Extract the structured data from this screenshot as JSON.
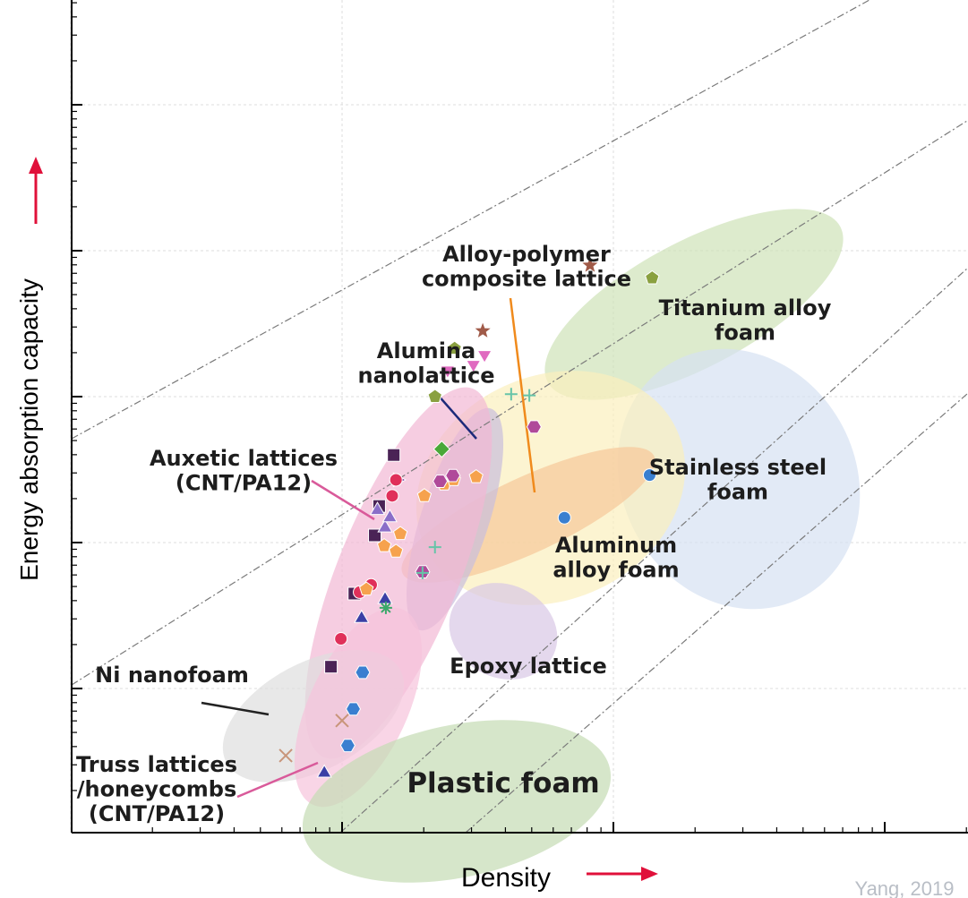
{
  "chart_data": {
    "type": "scatter",
    "title": "",
    "xlabel": "Density",
    "ylabel": "Energy absorption capacity",
    "axis_arrow_color": "#e0103a",
    "scale": "log-log",
    "grid": true,
    "tick_labels": "none",
    "regions": [
      {
        "name": "Titanium alloy foam",
        "label": "Titanium alloy\nfoam",
        "color": "#cfe3b8"
      },
      {
        "name": "Stainless steel foam",
        "label": "Stainless steel\nfoam",
        "color": "#d5e1f2"
      },
      {
        "name": "Aluminum alloy foam",
        "label": "Aluminum\nalloy foam",
        "color": "#fbf0bd"
      },
      {
        "name": "Alloy-polymer composite lattice",
        "label": "Alloy-polymer\ncomposite lattice",
        "color": "#f6c89a"
      },
      {
        "name": "Alumina nanolattice",
        "label": "Alumina\nnanolattice",
        "color": "#c9bedd"
      },
      {
        "name": "Auxetic lattices (CNT/PA12)",
        "label": "Auxetic lattices\n(CNT/PA12)",
        "color": "#f2b8d4"
      },
      {
        "name": "Epoxy lattice",
        "label": "Epoxy lattice",
        "color": "#d8c8e6"
      },
      {
        "name": "Ni nanofoam",
        "label": "Ni nanofoam",
        "color": "#dedede"
      },
      {
        "name": "Truss lattices /honeycombs (CNT/PA12)",
        "label": "Truss lattices\n/honeycombs\n(CNT/PA12)",
        "color": "#f6c3dc"
      },
      {
        "name": "Plastic foam",
        "label": "Plastic foam",
        "color": "#c5dbb3"
      }
    ],
    "points": [
      {
        "group": "Auxetic lattices",
        "marker": "square",
        "color": "#4a2356",
        "points": [
          [
            0.91,
            0.141
          ],
          [
            1.11,
            0.447
          ],
          [
            1.32,
            1.12
          ],
          [
            1.37,
            1.78
          ],
          [
            1.55,
            3.98
          ]
        ]
      },
      {
        "group": "Auxetic lattices",
        "marker": "triangle-right",
        "color": "#7a3fa0",
        "points": [
          [
            1.6,
            2.69
          ]
        ]
      },
      {
        "group": "Auxetic lattices",
        "marker": "circle",
        "color": "#e0305a",
        "points": [
          [
            0.99,
            0.219
          ],
          [
            1.16,
            0.457
          ],
          [
            1.28,
            0.513
          ],
          [
            1.53,
            2.09
          ],
          [
            1.58,
            2.69
          ]
        ]
      },
      {
        "group": "Truss lattices /honeycombs",
        "marker": "triangle",
        "color": "#3a3fa5",
        "points": [
          [
            0.86,
            0.0263
          ],
          [
            1.18,
            0.302
          ],
          [
            1.44,
            0.407
          ]
        ]
      },
      {
        "group": "Truss lattices /honeycombs",
        "marker": "hexagon",
        "color": "#3a7fd0",
        "points": [
          [
            1.05,
            0.0407
          ],
          [
            1.1,
            0.0724
          ],
          [
            1.19,
            0.129
          ]
        ]
      },
      {
        "group": "Ni nanofoam",
        "marker": "x",
        "color": "#c8957a",
        "points": [
          [
            0.62,
            0.0347
          ],
          [
            1.0,
            0.0603
          ]
        ]
      },
      {
        "group": "Alumina nanolattice",
        "marker": "triangle",
        "color": "#8a6ec8",
        "points": [
          [
            1.35,
            1.66
          ],
          [
            1.44,
            1.26
          ],
          [
            1.5,
            1.48
          ]
        ]
      },
      {
        "group": "Alumina nanolattice",
        "marker": "asterisk",
        "color": "#3aa86a",
        "points": [
          [
            1.45,
            0.357
          ]
        ]
      },
      {
        "group": "Alloy-polymer composite lattice",
        "marker": "pentagon",
        "color": "#f6a24e",
        "points": [
          [
            1.23,
            0.479
          ],
          [
            1.43,
            0.95
          ],
          [
            1.58,
            0.87
          ],
          [
            1.64,
            1.15
          ],
          [
            2.01,
            2.09
          ],
          [
            2.38,
            2.51
          ],
          [
            2.58,
            2.69
          ],
          [
            3.12,
            2.82
          ]
        ]
      },
      {
        "group": "Aluminum alloy foam",
        "marker": "hexagon",
        "color": "#b04a9a",
        "points": [
          [
            1.98,
            0.631
          ],
          [
            2.3,
            2.63
          ],
          [
            2.56,
            2.88
          ],
          [
            5.1,
            6.2
          ]
        ]
      },
      {
        "group": "Aluminum alloy foam",
        "marker": "diamond",
        "color": "#4aa838",
        "points": [
          [
            2.33,
            4.37
          ]
        ]
      },
      {
        "group": "Titanium alloy foam",
        "marker": "pentagon",
        "color": "#8aa040",
        "points": [
          [
            2.2,
            10.0
          ],
          [
            2.6,
            21.4
          ],
          [
            13.9,
            65.0
          ]
        ]
      },
      {
        "group": "Titanium alloy foam",
        "marker": "star",
        "color": "#a05a48",
        "points": [
          [
            3.3,
            28.2
          ],
          [
            8.2,
            79.4
          ]
        ]
      },
      {
        "group": "Titanium alloy foam",
        "marker": "triangle-down",
        "color": "#e06ac0",
        "points": [
          [
            2.45,
            15.2
          ],
          [
            3.05,
            16.6
          ],
          [
            3.35,
            19.4
          ]
        ]
      },
      {
        "group": "Stainless steel foam",
        "marker": "cross",
        "color": "#66c4a8",
        "points": [
          [
            4.2,
            10.4
          ],
          [
            4.9,
            10.2
          ],
          [
            2.2,
            0.93
          ],
          [
            1.98,
            0.62
          ]
        ]
      },
      {
        "group": "Stainless steel foam",
        "marker": "circle",
        "color": "#3a7fd0",
        "points": [
          [
            6.6,
            1.48
          ],
          [
            13.6,
            2.9
          ]
        ]
      }
    ],
    "xlim_decades": [
      -1,
      1.3
    ],
    "ylim_decades": [
      -2.1,
      2.7
    ],
    "guide_lines": 4
  },
  "watermark": "Yang, 2019"
}
